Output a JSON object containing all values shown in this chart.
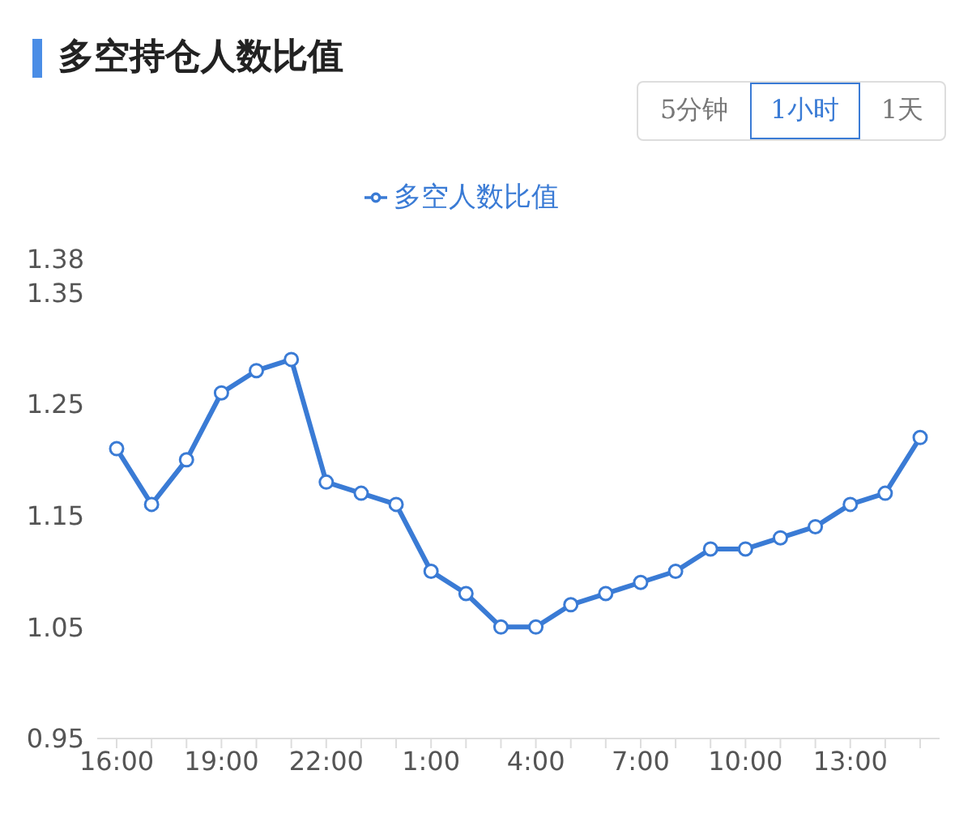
{
  "chart_data": {
    "type": "line",
    "title": "多空持仓人数比值",
    "annotations": [
      "5分钟",
      "1小时",
      "1天"
    ],
    "categories": [
      "16:00",
      null,
      null,
      "19:00",
      null,
      null,
      "22:00",
      null,
      null,
      "1:00",
      null,
      null,
      "4:00",
      null,
      null,
      "7:00",
      null,
      null,
      "10:00",
      null,
      null,
      "13:00",
      null,
      null
    ],
    "series": [
      {
        "name": "多空人数比值",
        "color": "#3a7bd5",
        "values": [
          1.21,
          1.16,
          1.2,
          1.26,
          1.28,
          1.29,
          1.18,
          1.17,
          1.16,
          1.1,
          1.08,
          1.05,
          1.05,
          1.07,
          1.08,
          1.09,
          1.1,
          1.12,
          1.12,
          1.13,
          1.14,
          1.16,
          1.17,
          1.22
        ]
      }
    ],
    "ylim": [
      0.95,
      1.38
    ],
    "yticks": [
      0.95,
      1.05,
      1.15,
      1.25,
      1.35,
      1.38
    ],
    "legend": "top",
    "marker": "circle",
    "line_style": "solid"
  }
}
